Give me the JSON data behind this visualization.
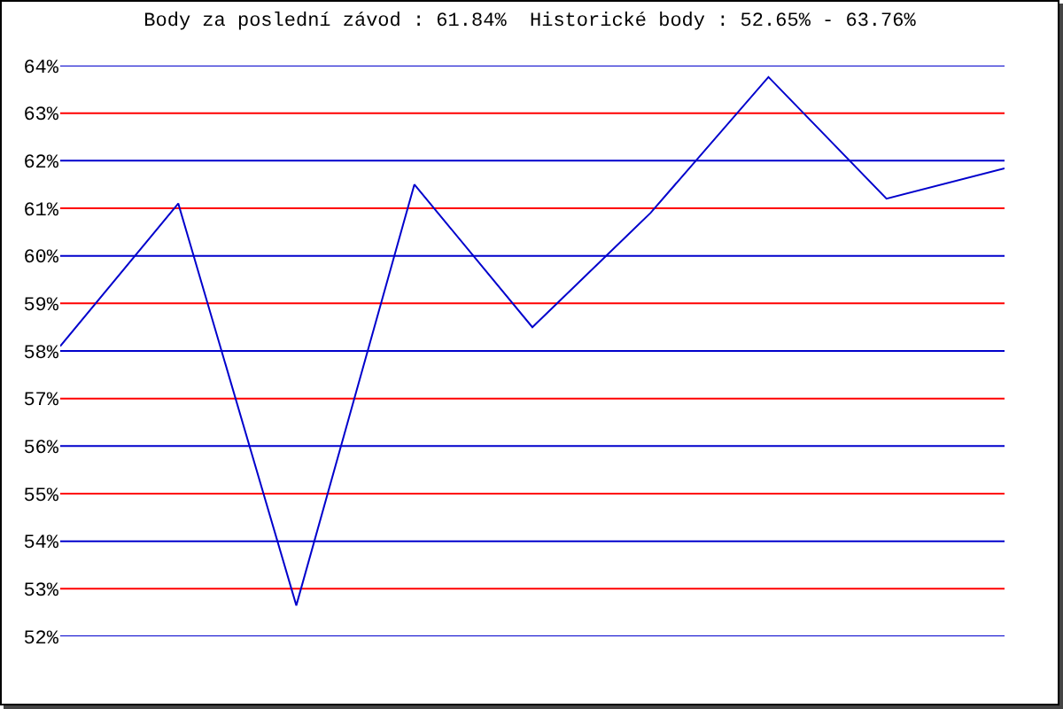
{
  "chart_data": {
    "type": "line",
    "title": "Body za poslední závod : 61.84%  Historické body : 52.65% - 63.76%",
    "categories": [
      null,
      null,
      null,
      null,
      null,
      null,
      null,
      null,
      null
    ],
    "series": [
      {
        "color": "#0000cc",
        "values": [
          58.1,
          61.1,
          52.65,
          61.5,
          58.5,
          60.9,
          63.76,
          61.2,
          61.84
        ]
      }
    ],
    "ylim": [
      52,
      64
    ],
    "yticks": [
      {
        "value": 52,
        "label": "52%"
      },
      {
        "value": 53,
        "label": "53%"
      },
      {
        "value": 54,
        "label": "54%"
      },
      {
        "value": 55,
        "label": "55%"
      },
      {
        "value": 56,
        "label": "56%"
      },
      {
        "value": 57,
        "label": "57%"
      },
      {
        "value": 58,
        "label": "58%"
      },
      {
        "value": 59,
        "label": "59%"
      },
      {
        "value": 60,
        "label": "60%"
      },
      {
        "value": 61,
        "label": "61%"
      },
      {
        "value": 62,
        "label": "62%"
      },
      {
        "value": 63,
        "label": "63%"
      },
      {
        "value": 64,
        "label": "64%"
      }
    ],
    "grid": true,
    "legend": false,
    "tick_labels": "y"
  }
}
